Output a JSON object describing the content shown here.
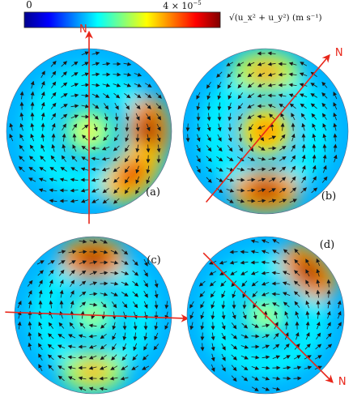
{
  "chart_data": {
    "type": "heatmap",
    "title": "",
    "colorbar": {
      "min_label": "0",
      "max_label": "4 × 10",
      "max_exponent": "−5",
      "quantity_label": "√(u_x² + u_y²) (m s⁻¹)",
      "range": [
        0,
        4e-05
      ],
      "colormap": "jet"
    },
    "panels": [
      {
        "label": "(a)",
        "north_label": "N",
        "north_bearing_deg": 0,
        "hotspots": [
          {
            "where": "center",
            "level": 0.62
          },
          {
            "where": "east rim",
            "level": 0.97
          },
          {
            "where": "south-east rim",
            "level": 0.9
          }
        ]
      },
      {
        "label": "(b)",
        "north_label": "N",
        "north_bearing_deg": 40,
        "hotspots": [
          {
            "where": "center",
            "level": 0.85
          },
          {
            "where": "north rim",
            "level": 0.72
          },
          {
            "where": "south rim",
            "level": 0.95
          }
        ]
      },
      {
        "label": "(c)",
        "north_label": "N",
        "north_bearing_deg": 92,
        "hotspots": [
          {
            "where": "north rim",
            "level": 0.97
          },
          {
            "where": "center",
            "level": 0.55
          },
          {
            "where": "south rim",
            "level": 0.7
          }
        ]
      },
      {
        "label": "(d)",
        "north_label": "N",
        "north_bearing_deg": 135,
        "hotspots": [
          {
            "where": "north-east rim",
            "level": 0.97
          },
          {
            "where": "center",
            "level": 0.55
          }
        ]
      }
    ]
  },
  "colors": {
    "north_line": "#e8261a",
    "arrow": "#1a1a1a"
  }
}
